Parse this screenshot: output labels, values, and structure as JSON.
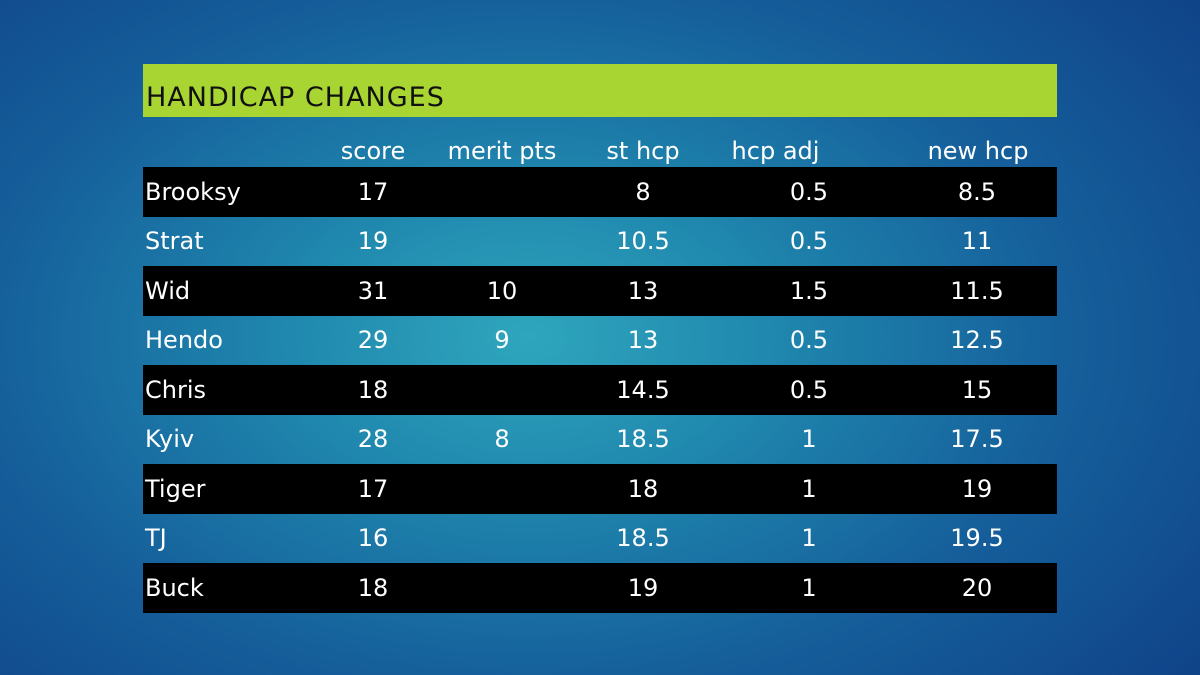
{
  "title": "HANDICAP CHANGES",
  "columns": {
    "score": "score",
    "merit": "merit pts",
    "st_hcp": "st hcp",
    "hcp_adj": "hcp adj",
    "new_hcp": "new hcp"
  },
  "rows": [
    {
      "name": "Brooksy",
      "score": "17",
      "merit": "",
      "st_hcp": "8",
      "hcp_adj": "0.5",
      "new_hcp": "8.5"
    },
    {
      "name": "Strat",
      "score": "19",
      "merit": "",
      "st_hcp": "10.5",
      "hcp_adj": "0.5",
      "new_hcp": "11"
    },
    {
      "name": "Wid",
      "score": "31",
      "merit": "10",
      "st_hcp": "13",
      "hcp_adj": "1.5",
      "new_hcp": "11.5"
    },
    {
      "name": "Hendo",
      "score": "29",
      "merit": "9",
      "st_hcp": "13",
      "hcp_adj": "0.5",
      "new_hcp": "12.5"
    },
    {
      "name": "Chris",
      "score": "18",
      "merit": "",
      "st_hcp": "14.5",
      "hcp_adj": "0.5",
      "new_hcp": "15"
    },
    {
      "name": "Kyiv",
      "score": "28",
      "merit": "8",
      "st_hcp": "18.5",
      "hcp_adj": "1",
      "new_hcp": "17.5"
    },
    {
      "name": "Tiger",
      "score": "17",
      "merit": "",
      "st_hcp": "18",
      "hcp_adj": "1",
      "new_hcp": "19"
    },
    {
      "name": "TJ",
      "score": "16",
      "merit": "",
      "st_hcp": "18.5",
      "hcp_adj": "1",
      "new_hcp": "19.5"
    },
    {
      "name": "Buck",
      "score": "18",
      "merit": "",
      "st_hcp": "19",
      "hcp_adj": "1",
      "new_hcp": "20"
    }
  ]
}
